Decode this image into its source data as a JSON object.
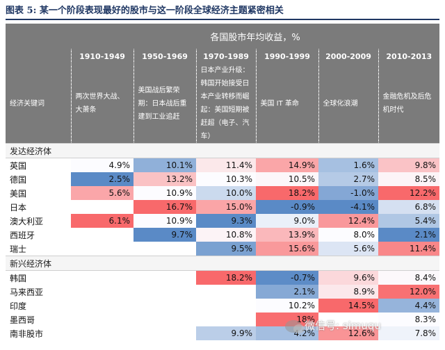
{
  "caption": "图表 5: 某一个阶段表现最好的股市与这一阶段全球经济主题紧密相关",
  "table": {
    "title": "各国股市年均收益，%",
    "keyword_label": "经济关键词",
    "periods": [
      "1910-1949",
      "1950-1969",
      "1970-1989",
      "1990-1999",
      "2000-2009",
      "2010-2013"
    ],
    "keywords": [
      "两次世界大战、大萧条",
      "美国战后繁荣期：日本战后重建到工业追赶",
      "日本产业升级：韩国开始接受日本产业转移而崛起：美国短期被赶超（电子、汽车）",
      "美国 IT 革命",
      "全球化浪潮",
      "金融危机及后危机时代"
    ],
    "groups": [
      {
        "name": "发达经济体",
        "rows": [
          {
            "country": "英国",
            "values": [
              "4.9%",
              "10.1%",
              "11.4%",
              "14.9%",
              "1.6%",
              "9.8%"
            ]
          },
          {
            "country": "德国",
            "values": [
              "2.5%",
              "13.2%",
              "10.3%",
              "10.5%",
              "2.7%",
              "8.5%"
            ]
          },
          {
            "country": "美国",
            "values": [
              "5.6%",
              "10.9%",
              "10.0%",
              "18.2%",
              "-1.0%",
              "12.2%"
            ]
          },
          {
            "country": "日本",
            "values": [
              "",
              "16.7%",
              "15.0%",
              "-0.9%",
              "-4.1%",
              "6.8%"
            ]
          },
          {
            "country": "澳大利亚",
            "values": [
              "6.1%",
              "10.9%",
              "9.3%",
              "9.0%",
              "12.4%",
              "5.4%"
            ]
          },
          {
            "country": "西班牙",
            "values": [
              "",
              "9.7%",
              "10.8%",
              "13.9%",
              "8.0%",
              "2.1%"
            ]
          },
          {
            "country": "瑞士",
            "values": [
              "",
              "",
              "9.5%",
              "15.6%",
              "5.6%",
              "11.4%"
            ]
          }
        ]
      },
      {
        "name": "新兴经济体",
        "rows": [
          {
            "country": "韩国",
            "values": [
              "",
              "",
              "18.2%",
              "-0.7%",
              "9.6%",
              "8.4%"
            ]
          },
          {
            "country": "马来西亚",
            "values": [
              "",
              "",
              "",
              "2.1%",
              "8.9%",
              "12.0%"
            ]
          },
          {
            "country": "印度",
            "values": [
              "",
              "",
              "",
              "10.2%",
              "14.5%",
              "4.4%"
            ]
          },
          {
            "country": "墨西哥",
            "values": [
              "",
              "",
              "",
              "18%",
              "",
              "8.3%"
            ]
          },
          {
            "country": "南非股市",
            "values": [
              "",
              "",
              "9.9%",
              "4.2%",
              "12.6%",
              "7.8%"
            ]
          }
        ]
      }
    ]
  },
  "colors": {
    "header_bg": "#7b7b7b",
    "high_red": "#f8696b",
    "mid_white": "#fcfcff",
    "low_blue": "#5a8ac6",
    "caption": "#1f3763"
  },
  "watermark": "微信号: simuqu"
}
